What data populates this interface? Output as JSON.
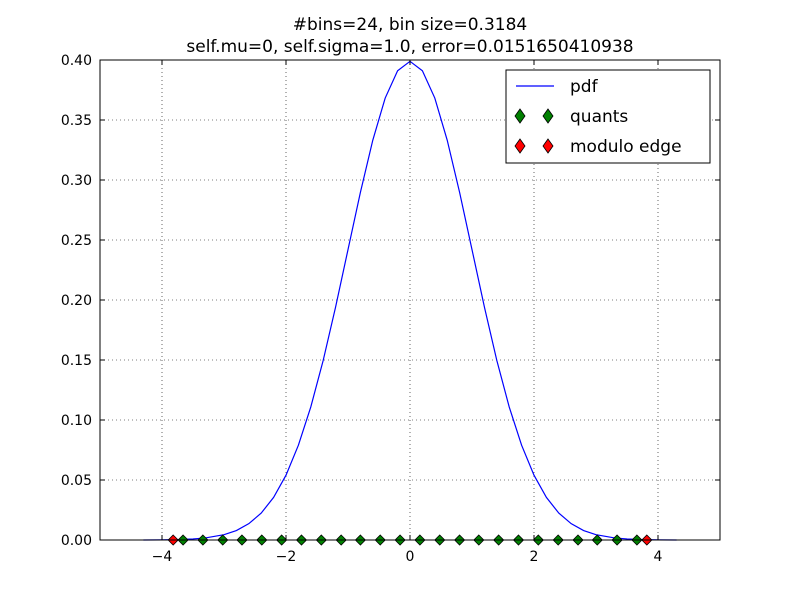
{
  "chart_data": {
    "type": "line",
    "title_lines": [
      "#bins=24, bin size=0.3184",
      "self.mu=0, self.sigma=1.0, error=0.0151650410938"
    ],
    "xlabel": "",
    "ylabel": "",
    "xlim": [
      -5,
      5
    ],
    "ylim": [
      0,
      0.4
    ],
    "xticks": [
      -4,
      -2,
      0,
      2,
      4
    ],
    "xtick_labels": [
      "−4",
      "−2",
      "0",
      "2",
      "4"
    ],
    "yticks": [
      0.0,
      0.05,
      0.1,
      0.15,
      0.2,
      0.25,
      0.3,
      0.35,
      0.4
    ],
    "ytick_labels": [
      "0.00",
      "0.05",
      "0.10",
      "0.15",
      "0.20",
      "0.25",
      "0.30",
      "0.35",
      "0.40"
    ],
    "grid": true,
    "legend_position": "top-right",
    "series": [
      {
        "name": "pdf",
        "kind": "line",
        "color": "#0000ff",
        "x": [
          -4.3,
          -4.0,
          -3.7,
          -3.5,
          -3.3,
          -3.0,
          -2.8,
          -2.6,
          -2.4,
          -2.2,
          -2.0,
          -1.8,
          -1.6,
          -1.4,
          -1.2,
          -1.0,
          -0.8,
          -0.6,
          -0.4,
          -0.2,
          0.0,
          0.2,
          0.4,
          0.6,
          0.8,
          1.0,
          1.2,
          1.4,
          1.6,
          1.8,
          2.0,
          2.2,
          2.4,
          2.6,
          2.8,
          3.0,
          3.3,
          3.5,
          3.7,
          4.0,
          4.3
        ],
        "y": [
          0.0,
          0.0001,
          0.0004,
          0.0009,
          0.0017,
          0.0044,
          0.0079,
          0.0136,
          0.0224,
          0.0355,
          0.054,
          0.079,
          0.1109,
          0.1497,
          0.1942,
          0.242,
          0.2897,
          0.3332,
          0.3683,
          0.391,
          0.3989,
          0.391,
          0.3683,
          0.3332,
          0.2897,
          0.242,
          0.1942,
          0.1497,
          0.1109,
          0.079,
          0.054,
          0.0355,
          0.0224,
          0.0136,
          0.0079,
          0.0044,
          0.0017,
          0.0009,
          0.0004,
          0.0001,
          0.0
        ]
      },
      {
        "name": "quants",
        "kind": "markers",
        "marker": "diamond",
        "color": "#008000",
        "x": [
          -3.66,
          -3.34,
          -3.02,
          -2.71,
          -2.39,
          -2.07,
          -1.75,
          -1.43,
          -1.11,
          -0.8,
          -0.48,
          -0.16,
          0.16,
          0.48,
          0.8,
          1.11,
          1.43,
          1.75,
          2.07,
          2.39,
          2.71,
          3.02,
          3.34,
          3.66
        ],
        "y": [
          0,
          0,
          0,
          0,
          0,
          0,
          0,
          0,
          0,
          0,
          0,
          0,
          0,
          0,
          0,
          0,
          0,
          0,
          0,
          0,
          0,
          0,
          0,
          0
        ]
      },
      {
        "name": "modulo edge",
        "kind": "markers",
        "marker": "diamond",
        "color": "#ff0000",
        "x": [
          -3.82,
          3.82
        ],
        "y": [
          0,
          0
        ]
      }
    ]
  }
}
